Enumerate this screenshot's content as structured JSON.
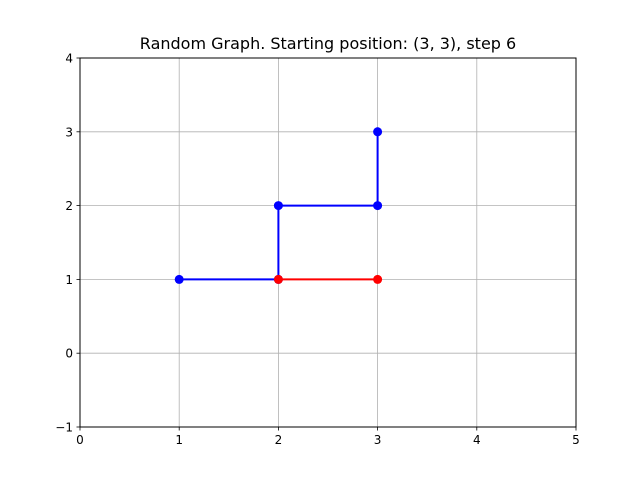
{
  "chart_data": {
    "type": "line",
    "title": "Random Graph. Starting position: (3, 3), step 6",
    "xlabel": "",
    "ylabel": "",
    "xlim": [
      0,
      5
    ],
    "ylim": [
      -1,
      4
    ],
    "xticks": [
      "0",
      "1",
      "2",
      "3",
      "4",
      "5"
    ],
    "yticks": [
      "−1",
      "0",
      "1",
      "2",
      "3",
      "4"
    ],
    "grid": true,
    "colors": {
      "path": "#0000ff",
      "step": "#ff0000",
      "grid": "#b0b0b0"
    },
    "series": [
      {
        "values": [
          [
            3,
            3
          ],
          [
            3,
            2
          ],
          [
            2,
            2
          ],
          [
            2,
            1
          ],
          [
            1,
            1
          ]
        ]
      },
      {
        "values": [
          [
            2,
            1
          ],
          [
            3,
            1
          ]
        ]
      }
    ]
  }
}
